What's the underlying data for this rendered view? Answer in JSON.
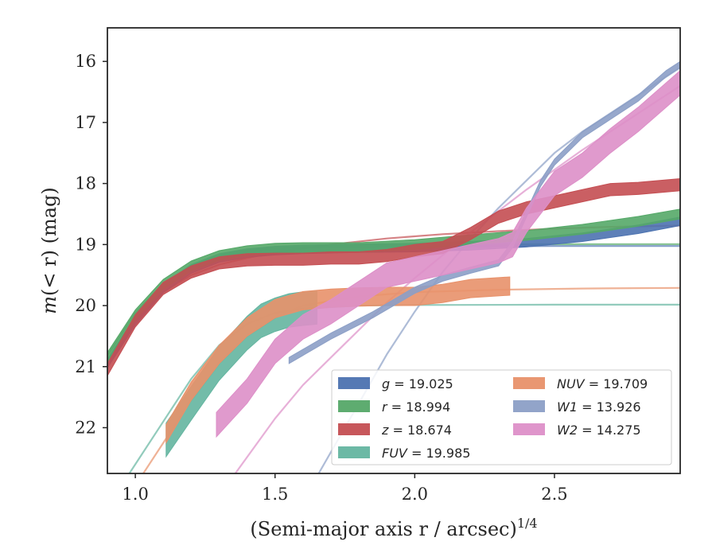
{
  "chart_data": {
    "type": "line",
    "xlabel": "(Semi-major axis r / arcsec)^{1/4}",
    "ylabel": "m(< r) (mag)",
    "xlim": [
      0.9,
      2.95
    ],
    "ylim": [
      22.75,
      15.45
    ],
    "y_inverted": true,
    "xticks": [
      {
        "value": 1.0,
        "label": "1.0"
      },
      {
        "value": 1.5,
        "label": "1.5"
      },
      {
        "value": 2.0,
        "label": "2.0"
      },
      {
        "value": 2.5,
        "label": "2.5"
      }
    ],
    "yticks": [
      {
        "value": 16,
        "label": "16"
      },
      {
        "value": 17,
        "label": "17"
      },
      {
        "value": 18,
        "label": "18"
      },
      {
        "value": 19,
        "label": "19"
      },
      {
        "value": 20,
        "label": "20"
      },
      {
        "value": 21,
        "label": "21"
      },
      {
        "value": 22,
        "label": "22"
      }
    ],
    "legend": {
      "position": "lower right",
      "columns": 2
    },
    "series": [
      {
        "name": "g = 19.025",
        "legend_var": "g",
        "legend_value": "19.025",
        "color": "#4c72b0",
        "band": {
          "x": [
            0.9,
            1.0,
            1.1,
            1.2,
            1.3,
            1.4,
            1.5,
            1.6,
            1.8,
            2.0,
            2.2,
            2.4,
            2.6,
            2.8,
            2.95
          ],
          "y": [
            20.95,
            20.25,
            19.72,
            19.4,
            19.22,
            19.14,
            19.1,
            19.08,
            19.06,
            19.05,
            19.02,
            18.97,
            18.88,
            18.75,
            18.62
          ],
          "width": 0.14
        },
        "model": {
          "x": [
            0.9,
            1.0,
            1.1,
            1.2,
            1.3,
            1.4,
            1.5,
            1.7,
            2.0,
            2.5,
            2.95
          ],
          "y": [
            20.9,
            20.18,
            19.68,
            19.38,
            19.21,
            19.12,
            19.08,
            19.04,
            19.03,
            19.025,
            19.025
          ]
        }
      },
      {
        "name": "r = 18.994",
        "legend_var": "r",
        "legend_value": "18.994",
        "color": "#55a868",
        "band": {
          "x": [
            0.9,
            1.0,
            1.1,
            1.2,
            1.3,
            1.4,
            1.5,
            1.6,
            1.8,
            2.0,
            2.2,
            2.4,
            2.6,
            2.8,
            2.95
          ],
          "y": [
            20.85,
            20.15,
            19.65,
            19.35,
            19.18,
            19.1,
            19.06,
            19.05,
            19.05,
            19.0,
            18.92,
            18.85,
            18.75,
            18.62,
            18.5
          ],
          "width": 0.16
        },
        "model": {
          "x": [
            0.9,
            1.0,
            1.1,
            1.2,
            1.3,
            1.4,
            1.5,
            1.7,
            2.0,
            2.5,
            2.95
          ],
          "y": [
            20.82,
            20.12,
            19.64,
            19.35,
            19.18,
            19.1,
            19.06,
            19.02,
            19.0,
            18.995,
            18.994
          ]
        }
      },
      {
        "name": "z = 18.674",
        "legend_var": "z",
        "legend_value": "18.674",
        "color": "#c44e52",
        "band": {
          "x": [
            0.9,
            1.0,
            1.1,
            1.2,
            1.3,
            1.4,
            1.5,
            1.6,
            1.7,
            1.8,
            1.9,
            2.0,
            2.1,
            2.2,
            2.3,
            2.4,
            2.5,
            2.6,
            2.7,
            2.8,
            2.95
          ],
          "y": [
            21.05,
            20.25,
            19.72,
            19.45,
            19.3,
            19.25,
            19.24,
            19.24,
            19.22,
            19.22,
            19.18,
            19.1,
            19.05,
            18.82,
            18.55,
            18.4,
            18.3,
            18.2,
            18.1,
            18.08,
            18.02
          ],
          "width": 0.2
        },
        "model": {
          "x": [
            0.9,
            1.0,
            1.1,
            1.2,
            1.3,
            1.4,
            1.5,
            1.7,
            1.9,
            2.1,
            2.3,
            2.5,
            2.7,
            2.95
          ],
          "y": [
            21.0,
            20.25,
            19.78,
            19.5,
            19.33,
            19.22,
            19.13,
            19.0,
            18.9,
            18.83,
            18.78,
            18.74,
            18.71,
            18.69
          ]
        }
      },
      {
        "name": "FUV = 19.985",
        "legend_var": "FUV",
        "legend_value": "19.985",
        "color": "#64b5a0",
        "band": {
          "x": [
            1.11,
            1.2,
            1.3,
            1.4,
            1.45,
            1.5,
            1.55,
            1.6,
            1.65
          ],
          "y": [
            22.2,
            21.6,
            20.95,
            20.45,
            20.25,
            20.15,
            20.08,
            20.05,
            20.03
          ],
          "width": 0.55
        },
        "model": {
          "x": [
            0.9,
            1.0,
            1.1,
            1.2,
            1.3,
            1.4,
            1.5,
            1.6,
            1.8,
            2.0,
            2.5,
            2.95
          ],
          "y": [
            23.3,
            22.6,
            21.9,
            21.2,
            20.65,
            20.3,
            20.12,
            20.05,
            20.0,
            19.99,
            19.985,
            19.985
          ]
        }
      },
      {
        "name": "NUV = 19.709",
        "legend_var": "NUV",
        "legend_value": "19.709",
        "color": "#e8916a",
        "band": {
          "x": [
            1.11,
            1.2,
            1.3,
            1.4,
            1.5,
            1.6,
            1.7,
            1.8,
            1.9,
            2.0,
            2.1,
            2.2,
            2.34
          ],
          "y": [
            22.1,
            21.4,
            20.8,
            20.35,
            20.05,
            19.92,
            19.88,
            19.86,
            19.85,
            19.85,
            19.8,
            19.72,
            19.68
          ],
          "width": 0.3
        },
        "model": {
          "x": [
            1.0,
            1.1,
            1.2,
            1.3,
            1.4,
            1.5,
            1.6,
            1.8,
            2.0,
            2.3,
            2.6,
            2.95
          ],
          "y": [
            22.95,
            22.25,
            21.55,
            20.95,
            20.5,
            20.2,
            20.0,
            19.85,
            19.78,
            19.74,
            19.72,
            19.71
          ]
        }
      },
      {
        "name": "W1 = 13.926",
        "legend_var": "W1",
        "legend_value": "13.926",
        "color": "#8c9fc6",
        "band": {
          "x": [
            1.55,
            1.7,
            1.85,
            2.0,
            2.1,
            2.2,
            2.3,
            2.35,
            2.4,
            2.45,
            2.5,
            2.6,
            2.7,
            2.8,
            2.9,
            2.95
          ],
          "y": [
            20.9,
            20.5,
            20.15,
            19.75,
            19.55,
            19.42,
            19.3,
            19.0,
            18.5,
            18.0,
            17.65,
            17.2,
            16.9,
            16.6,
            16.2,
            16.05
          ],
          "width": 0.1
        },
        "model": {
          "x": [
            1.65,
            1.8,
            1.9,
            2.0,
            2.1,
            2.2,
            2.3,
            2.4,
            2.5,
            2.6,
            2.7,
            2.8,
            2.9,
            2.95
          ],
          "y": [
            22.8,
            21.6,
            20.8,
            20.1,
            19.45,
            18.9,
            18.4,
            17.95,
            17.5,
            17.15,
            16.85,
            16.55,
            16.25,
            16.1
          ]
        }
      },
      {
        "name": "W2 = 14.275",
        "legend_var": "W2",
        "legend_value": "14.275",
        "color": "#dd8fc8",
        "band": {
          "x": [
            1.29,
            1.4,
            1.5,
            1.6,
            1.7,
            1.8,
            1.9,
            2.0,
            2.1,
            2.2,
            2.3,
            2.35,
            2.4,
            2.5,
            2.6,
            2.7,
            2.8,
            2.9,
            2.95
          ],
          "y": [
            21.95,
            21.4,
            20.75,
            20.35,
            20.1,
            19.8,
            19.5,
            19.4,
            19.3,
            19.2,
            19.1,
            19.0,
            18.6,
            18.0,
            17.7,
            17.3,
            16.95,
            16.55,
            16.35
          ],
          "width": 0.4
        },
        "model": {
          "x": [
            1.35,
            1.5,
            1.6,
            1.7,
            1.8,
            1.9,
            2.0,
            2.2,
            2.4,
            2.6,
            2.8,
            2.95
          ],
          "y": [
            22.8,
            21.85,
            21.3,
            20.85,
            20.4,
            19.95,
            19.55,
            18.8,
            18.1,
            17.45,
            16.85,
            16.4
          ]
        }
      }
    ]
  }
}
